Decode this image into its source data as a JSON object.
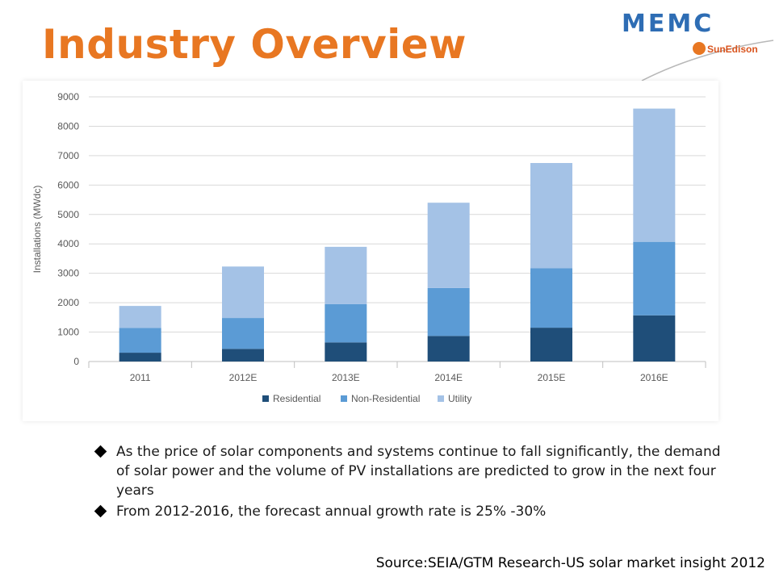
{
  "slide": {
    "title": "Industry Overview",
    "logo_primary": "MEMC",
    "logo_secondary": "SunEdison",
    "bullets": [
      "As the price of solar components and systems continue to fall significantly, the demand of solar power and the volume of PV installations are predicted to grow in the next four years",
      "From 2012-2016, the forecast annual growth rate is 25% -30%"
    ],
    "source": "Source:SEIA/GTM Research-US solar market insight 2012"
  },
  "colors": {
    "title": "#e87722",
    "residential": "#1f4e79",
    "non_residential": "#5b9bd5",
    "utility": "#a4c2e6",
    "grid": "#d9d9d9",
    "axis_text": "#595959"
  },
  "chart_data": {
    "type": "bar",
    "stacked": true,
    "categories": [
      "2011",
      "2012E",
      "2013E",
      "2014E",
      "2015E",
      "2016E"
    ],
    "series": [
      {
        "name": "Residential",
        "values": [
          300,
          430,
          650,
          870,
          1150,
          1570
        ]
      },
      {
        "name": "Non-Residential",
        "values": [
          840,
          1050,
          1300,
          1630,
          2020,
          2500
        ]
      },
      {
        "name": "Utility",
        "values": [
          750,
          1750,
          1950,
          2900,
          3580,
          4530
        ]
      }
    ],
    "ylabel": "Installations (MWdc)",
    "xlabel": "",
    "ylim": [
      0,
      9000
    ],
    "yticks": [
      0,
      1000,
      2000,
      3000,
      4000,
      5000,
      6000,
      7000,
      8000,
      9000
    ],
    "grid": true,
    "legend": "bottom"
  }
}
